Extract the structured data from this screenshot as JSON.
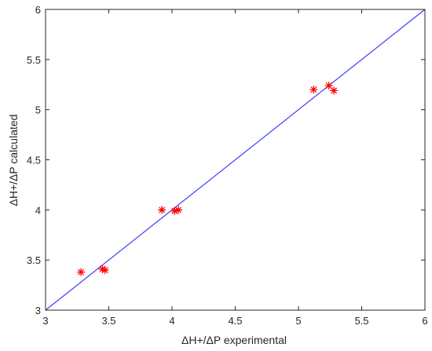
{
  "chart_data": {
    "type": "scatter",
    "xlabel": "ΔH+/ΔP experimental",
    "ylabel": "ΔH+/ΔP calculated",
    "xlim": [
      3,
      6
    ],
    "ylim": [
      3,
      6
    ],
    "xticks": [
      3,
      3.5,
      4,
      4.5,
      5,
      5.5,
      6
    ],
    "yticks": [
      3,
      3.5,
      4,
      4.5,
      5,
      5.5,
      6
    ],
    "xtick_labels": [
      "3",
      "3.5",
      "4",
      "4.5",
      "5",
      "5.5",
      "6"
    ],
    "ytick_labels": [
      "3",
      "3.5",
      "4",
      "4.5",
      "5",
      "5.5",
      "6"
    ],
    "grid": false,
    "marker": "asterisk",
    "series": [
      {
        "kind": "points",
        "color": "#ff0000",
        "x": [
          3.28,
          3.45,
          3.47,
          3.92,
          4.02,
          4.05,
          5.12,
          5.24,
          5.28
        ],
        "y": [
          3.38,
          3.41,
          3.4,
          4.0,
          3.99,
          4.0,
          5.2,
          5.24,
          5.19
        ]
      },
      {
        "kind": "line",
        "color": "#3b3bff",
        "x": [
          3,
          6
        ],
        "y": [
          3,
          6
        ]
      }
    ]
  }
}
